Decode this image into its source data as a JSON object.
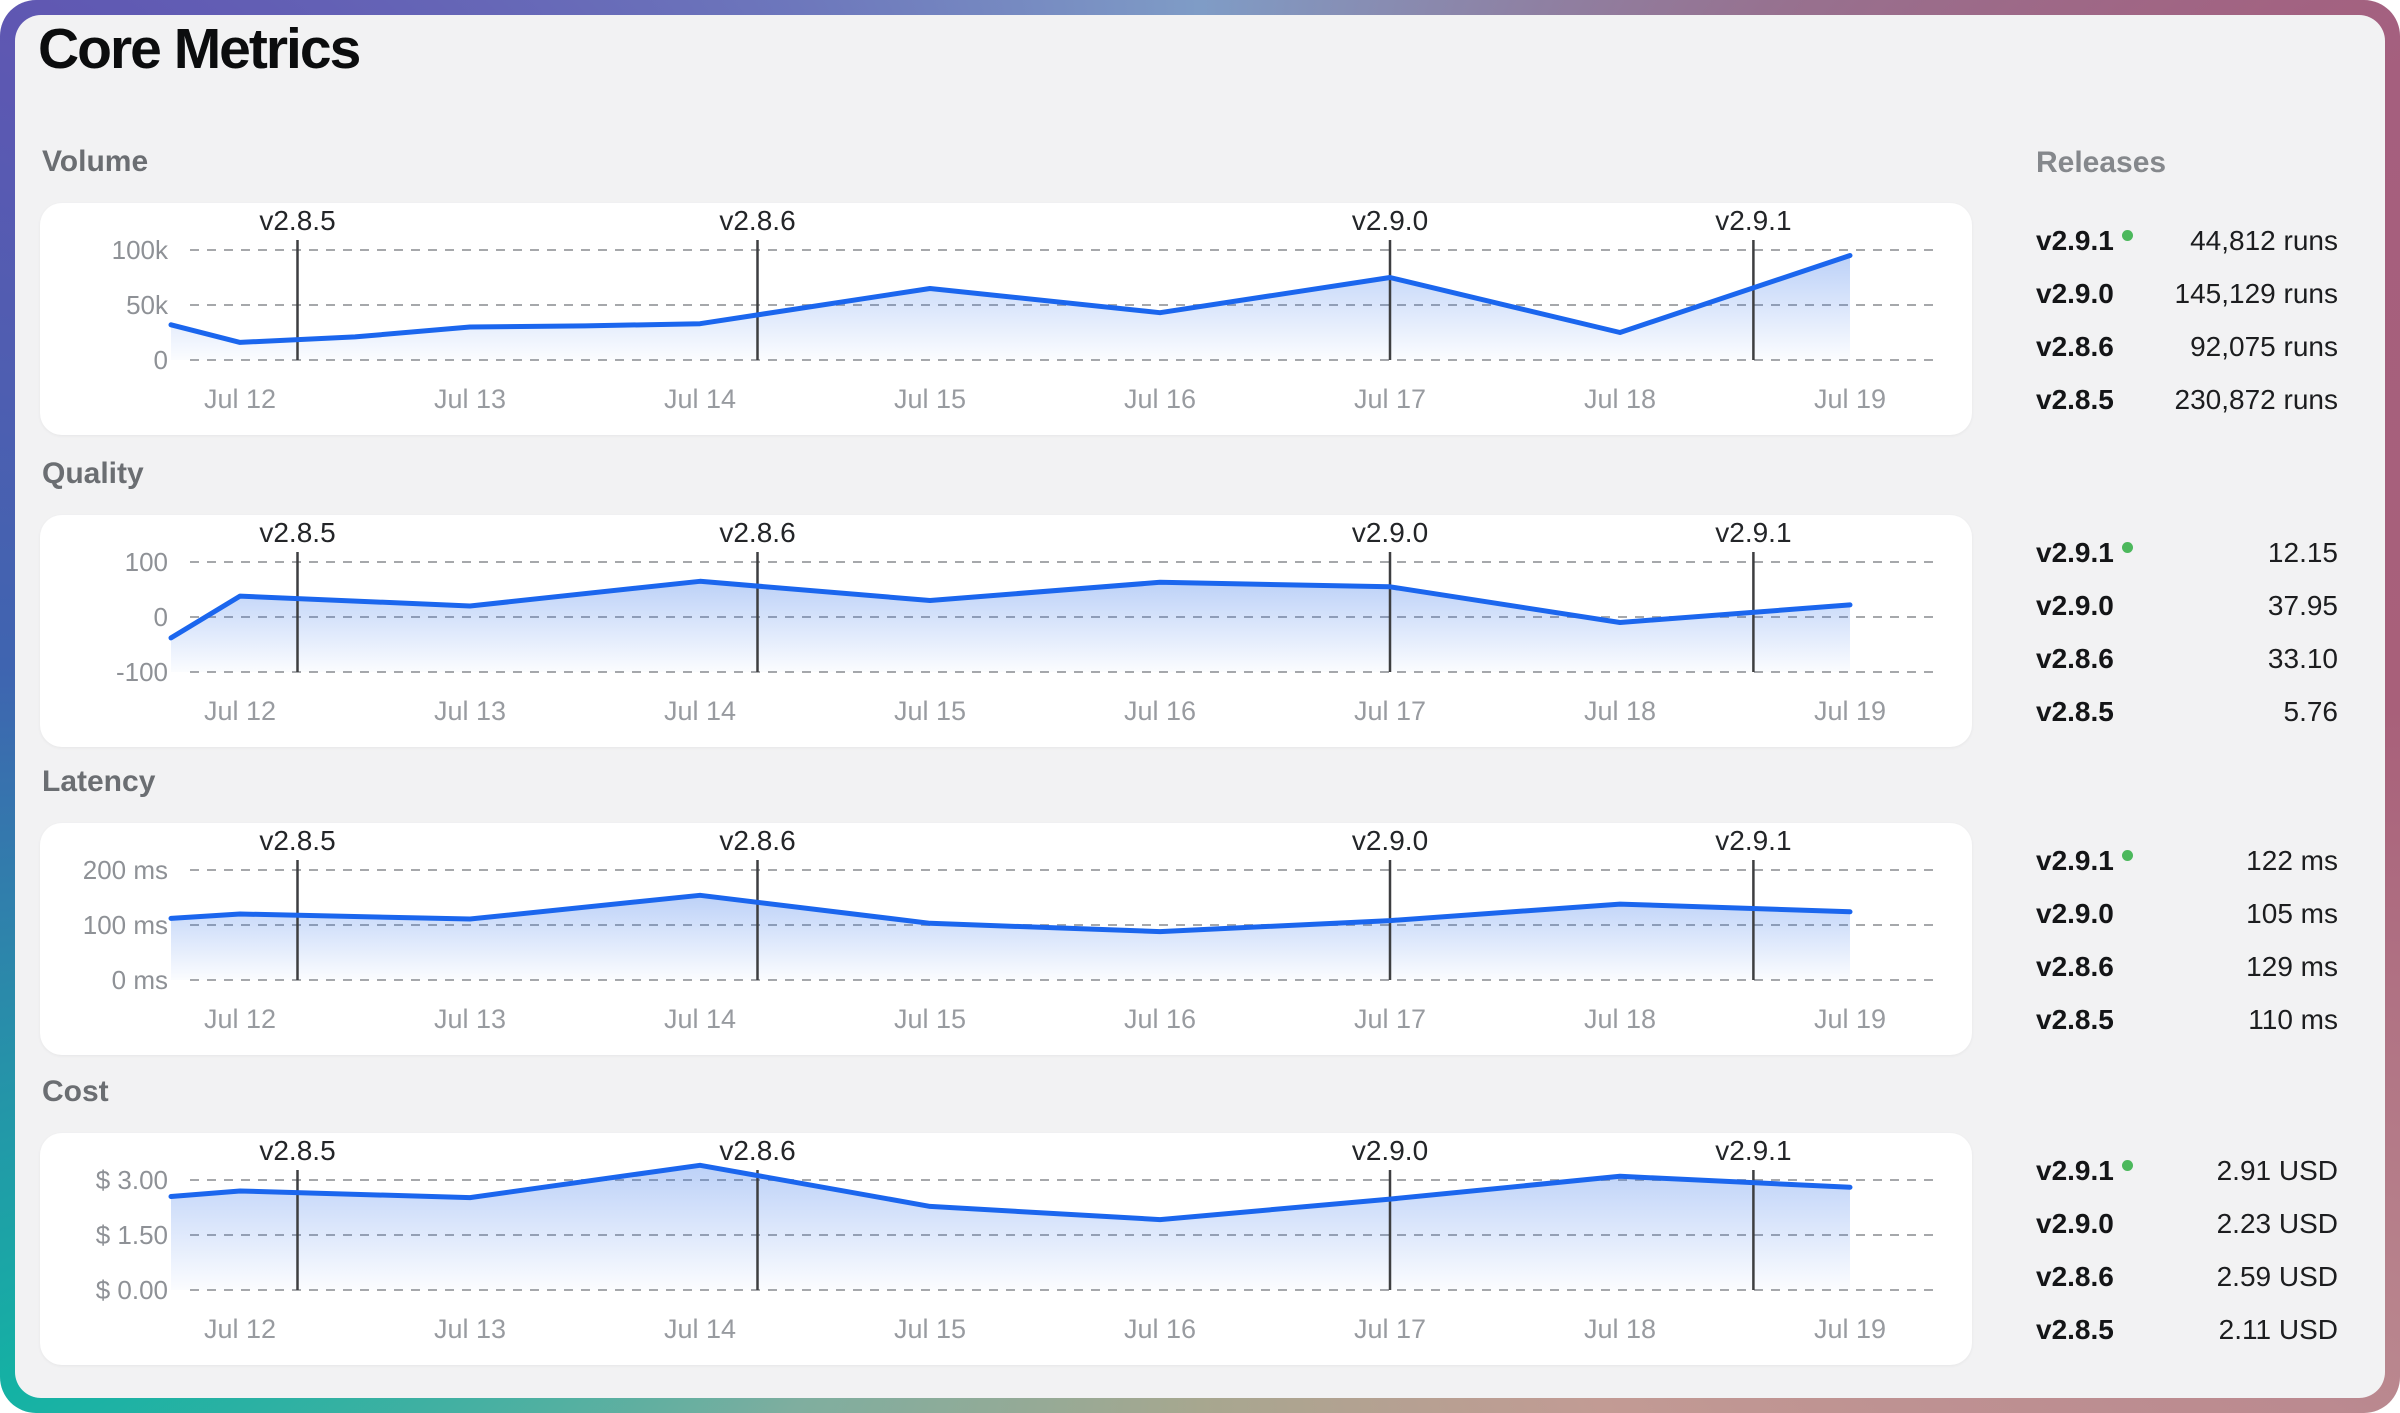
{
  "title": "Core Metrics",
  "sidebar": {
    "header": "Releases"
  },
  "x_axis": {
    "labels": [
      "Jul 12",
      "Jul 13",
      "Jul 14",
      "Jul 15",
      "Jul 16",
      "Jul 17",
      "Jul 18",
      "Jul 19"
    ],
    "days": [
      12,
      13,
      14,
      15,
      16,
      17,
      18,
      19
    ]
  },
  "markers": [
    {
      "label": "v2.8.5",
      "day": 12.25
    },
    {
      "label": "v2.8.6",
      "day": 14.25
    },
    {
      "label": "v2.9.0",
      "day": 17.0
    },
    {
      "label": "v2.9.1",
      "day": 18.58
    }
  ],
  "style": {
    "accent_blue": "#1b66ee",
    "fill_blue": "#2e6fe8",
    "grid_gray": "#a6a8ab",
    "marker_gray": "#3d3e40",
    "green_dot": "#4cb85c",
    "y_tick_color": "#8e9196",
    "x_tick_color": "#989ba0",
    "marker_label_color": "#232528"
  },
  "chart_data": [
    {
      "id": "volume",
      "type": "area",
      "title": "Volume",
      "ylabel": "runs",
      "legend_position": "none",
      "grid": true,
      "y_gridlines": [
        {
          "label": "100k",
          "value": 100000
        },
        {
          "label": "50k",
          "value": 50000
        },
        {
          "label": "0",
          "value": 0
        }
      ],
      "points": [
        {
          "day": 11.7,
          "value": 32000
        },
        {
          "day": 12.0,
          "value": 16000
        },
        {
          "day": 12.5,
          "value": 21000
        },
        {
          "day": 13.0,
          "value": 30000
        },
        {
          "day": 13.5,
          "value": 31000
        },
        {
          "day": 14.0,
          "value": 33000
        },
        {
          "day": 15.0,
          "value": 65000
        },
        {
          "day": 16.0,
          "value": 43000
        },
        {
          "day": 17.0,
          "value": 75000
        },
        {
          "day": 18.0,
          "value": 25000
        },
        {
          "day": 19.0,
          "value": 95000
        }
      ],
      "releases": [
        {
          "version": "v2.9.1",
          "value": "44,812 runs",
          "current": true
        },
        {
          "version": "v2.9.0",
          "value": "145,129 runs",
          "current": false
        },
        {
          "version": "v2.8.6",
          "value": "92,075 runs",
          "current": false
        },
        {
          "version": "v2.8.5",
          "value": "230,872 runs",
          "current": false
        }
      ]
    },
    {
      "id": "quality",
      "type": "area",
      "title": "Quality",
      "ylabel": "",
      "legend_position": "none",
      "grid": true,
      "y_gridlines": [
        {
          "label": "100",
          "value": 100
        },
        {
          "label": "0",
          "value": 0
        },
        {
          "label": "-100",
          "value": -100
        }
      ],
      "points": [
        {
          "day": 11.7,
          "value": -38
        },
        {
          "day": 12.0,
          "value": 38
        },
        {
          "day": 13.0,
          "value": 20
        },
        {
          "day": 14.0,
          "value": 65
        },
        {
          "day": 15.0,
          "value": 30
        },
        {
          "day": 16.0,
          "value": 63
        },
        {
          "day": 17.0,
          "value": 55
        },
        {
          "day": 18.0,
          "value": -10
        },
        {
          "day": 19.0,
          "value": 22
        }
      ],
      "releases": [
        {
          "version": "v2.9.1",
          "value": "12.15",
          "current": true
        },
        {
          "version": "v2.9.0",
          "value": "37.95",
          "current": false
        },
        {
          "version": "v2.8.6",
          "value": "33.10",
          "current": false
        },
        {
          "version": "v2.8.5",
          "value": "5.76",
          "current": false
        }
      ]
    },
    {
      "id": "latency",
      "type": "area",
      "title": "Latency",
      "ylabel": "ms",
      "legend_position": "none",
      "grid": true,
      "y_gridlines": [
        {
          "label": "200 ms",
          "value": 200
        },
        {
          "label": "100 ms",
          "value": 100
        },
        {
          "label": "0 ms",
          "value": 0
        }
      ],
      "points": [
        {
          "day": 11.7,
          "value": 112
        },
        {
          "day": 12.0,
          "value": 120
        },
        {
          "day": 13.0,
          "value": 111
        },
        {
          "day": 14.0,
          "value": 154
        },
        {
          "day": 15.0,
          "value": 103
        },
        {
          "day": 16.0,
          "value": 88
        },
        {
          "day": 17.0,
          "value": 108
        },
        {
          "day": 18.0,
          "value": 138
        },
        {
          "day": 19.0,
          "value": 124
        }
      ],
      "releases": [
        {
          "version": "v2.9.1",
          "value": "122 ms",
          "current": true
        },
        {
          "version": "v2.9.0",
          "value": "105 ms",
          "current": false
        },
        {
          "version": "v2.8.6",
          "value": "129 ms",
          "current": false
        },
        {
          "version": "v2.8.5",
          "value": "110 ms",
          "current": false
        }
      ]
    },
    {
      "id": "cost",
      "type": "area",
      "title": "Cost",
      "ylabel": "USD",
      "legend_position": "none",
      "grid": true,
      "y_gridlines": [
        {
          "label": "$ 3.00",
          "value": 3.0
        },
        {
          "label": "$ 1.50",
          "value": 1.5
        },
        {
          "label": "$ 0.00",
          "value": 0.0
        }
      ],
      "points": [
        {
          "day": 11.7,
          "value": 2.55
        },
        {
          "day": 12.0,
          "value": 2.7
        },
        {
          "day": 13.0,
          "value": 2.52
        },
        {
          "day": 14.0,
          "value": 3.4
        },
        {
          "day": 15.0,
          "value": 2.28
        },
        {
          "day": 16.0,
          "value": 1.92
        },
        {
          "day": 17.0,
          "value": 2.48
        },
        {
          "day": 18.0,
          "value": 3.1
        },
        {
          "day": 19.0,
          "value": 2.8
        }
      ],
      "releases": [
        {
          "version": "v2.9.1",
          "value": "2.91 USD",
          "current": true
        },
        {
          "version": "v2.9.0",
          "value": "2.23 USD",
          "current": false
        },
        {
          "version": "v2.8.6",
          "value": "2.59 USD",
          "current": false
        },
        {
          "version": "v2.8.5",
          "value": "2.11 USD",
          "current": false
        }
      ]
    }
  ]
}
